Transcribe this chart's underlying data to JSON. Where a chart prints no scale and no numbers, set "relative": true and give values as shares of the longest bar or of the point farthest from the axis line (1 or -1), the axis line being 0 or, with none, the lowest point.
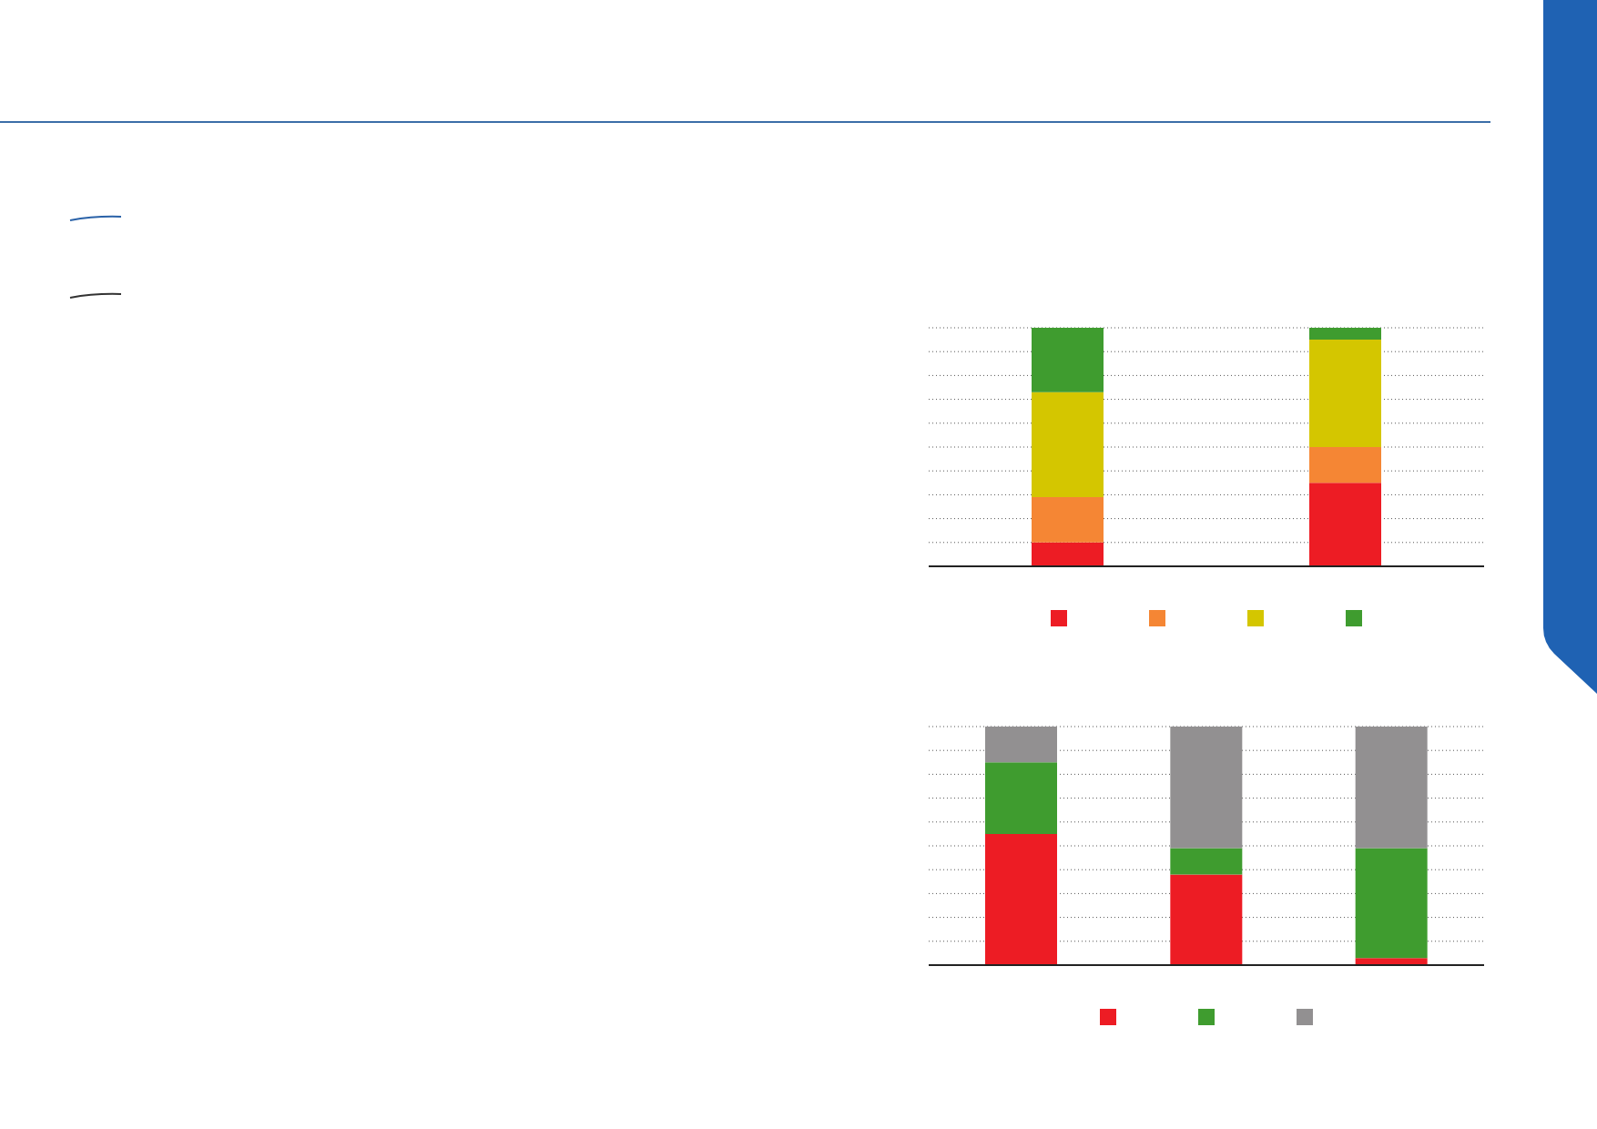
{
  "chart_data": [
    {
      "type": "bar",
      "relative": true,
      "stacked": true,
      "grid": "y",
      "categories": [
        null,
        null
      ],
      "series": [
        {
          "color": "#ed1c24",
          "values": [
            0.1,
            0.35
          ]
        },
        {
          "color": "#f58634",
          "values": [
            0.19,
            0.15
          ]
        },
        {
          "color": "#d4c600",
          "values": [
            0.44,
            0.45
          ]
        },
        {
          "color": "#3f9c2f",
          "values": [
            0.27,
            0.05
          ]
        }
      ]
    },
    {
      "type": "bar",
      "relative": true,
      "stacked": true,
      "grid": "y",
      "categories": [
        null,
        null,
        null
      ],
      "series": [
        {
          "color": "#ed1c24",
          "values": [
            0.55,
            0.38,
            0.03
          ]
        },
        {
          "color": "#3f9c2f",
          "values": [
            0.3,
            0.11,
            0.46
          ]
        },
        {
          "color": "#929091",
          "values": [
            0.15,
            0.51,
            0.51
          ]
        }
      ]
    }
  ]
}
